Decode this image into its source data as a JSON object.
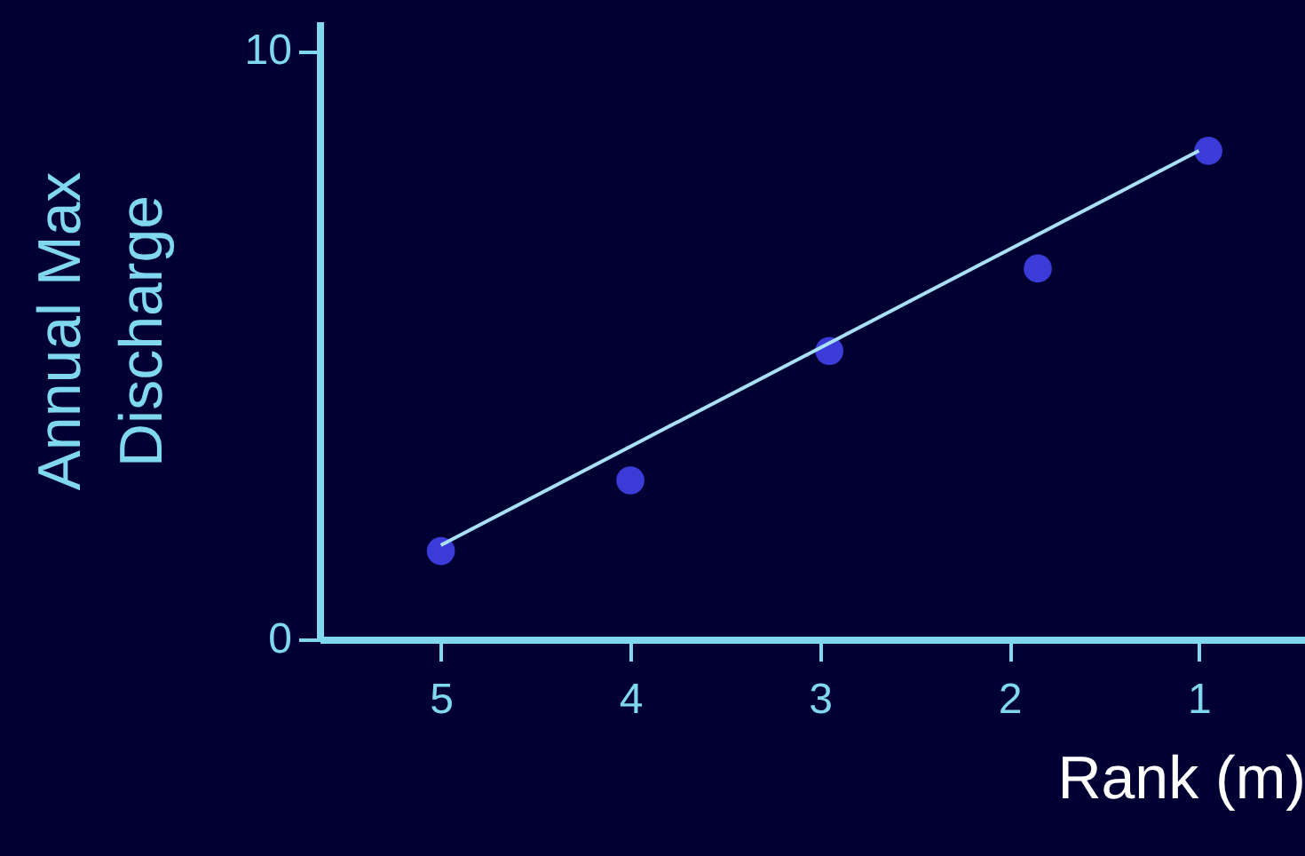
{
  "chart_data": {
    "type": "scatter",
    "xlabel": "Rank (m)",
    "ylabel": "Annual Max\nDischarge",
    "xlim": [
      5.64,
      0.44
    ],
    "ylim": [
      0,
      10.5
    ],
    "xticks": [
      5,
      4,
      3,
      2,
      1
    ],
    "yticks": [
      0,
      10
    ],
    "grid": false,
    "marker": "circle",
    "series": [
      {
        "color": "#3b3bd8",
        "x": [
          5,
          4,
          2.95,
          1.85,
          0.95
        ],
        "values": [
          1.5,
          2.7,
          4.9,
          6.3,
          8.3
        ]
      },
      {
        "type": "line",
        "marker": "none",
        "color": "#a8e0f8",
        "x": [
          5,
          1
        ],
        "values": [
          1.6,
          8.3
        ]
      }
    ]
  }
}
